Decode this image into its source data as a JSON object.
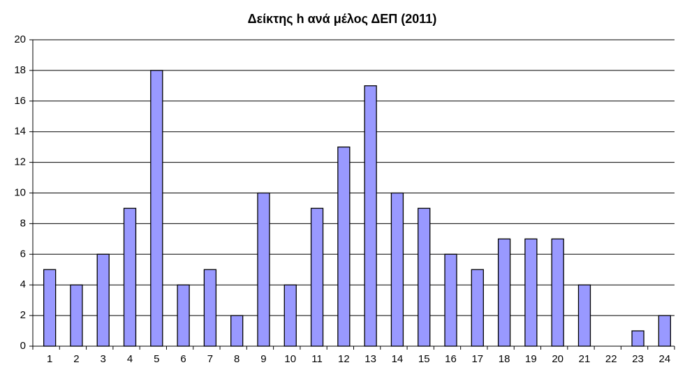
{
  "chart_data": {
    "type": "bar",
    "title": "Δείκτης h ανά μέλος ΔΕΠ (2011)",
    "categories": [
      "1",
      "2",
      "3",
      "4",
      "5",
      "6",
      "7",
      "8",
      "9",
      "10",
      "11",
      "12",
      "13",
      "14",
      "15",
      "16",
      "17",
      "18",
      "19",
      "20",
      "21",
      "22",
      "23",
      "24"
    ],
    "values": [
      5,
      4,
      6,
      9,
      18,
      4,
      5,
      2,
      10,
      4,
      9,
      13,
      17,
      10,
      9,
      6,
      5,
      7,
      7,
      7,
      4,
      0,
      1,
      2
    ],
    "color": "#9999ff",
    "ylim": [
      0,
      20
    ],
    "yticks": [
      0,
      2,
      4,
      6,
      8,
      10,
      12,
      14,
      16,
      18,
      20
    ],
    "grid": true
  }
}
